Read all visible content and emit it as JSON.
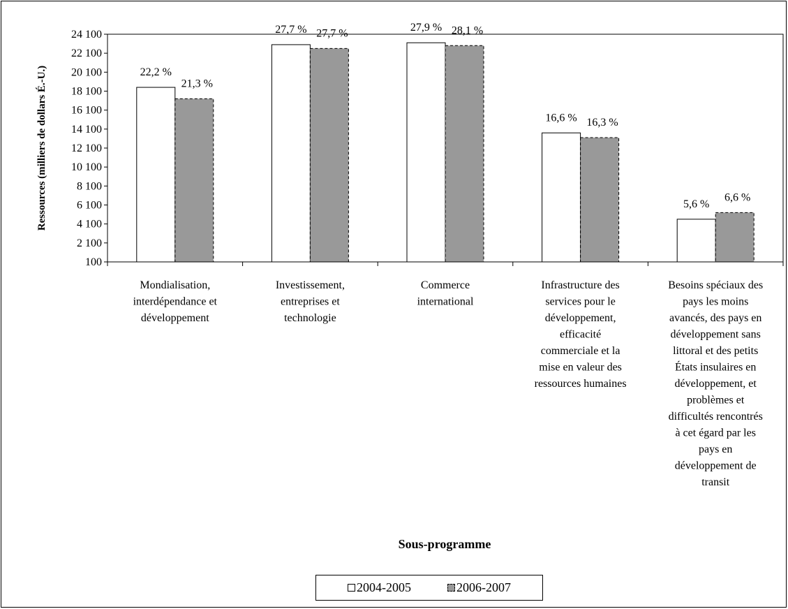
{
  "chart_data": {
    "type": "bar",
    "title": "",
    "xlabel": "Sous-programme",
    "ylabel": "Ressources (milliers de dollars É.-U.)",
    "ylim": [
      100,
      24100
    ],
    "yticks": [
      "100",
      "2 100",
      "4 100",
      "6 100",
      "8 100",
      "10 100",
      "12 100",
      "14 100",
      "16 100",
      "18 100",
      "20 100",
      "22 100",
      "24 100"
    ],
    "grid": false,
    "legend_position": "bottom",
    "categories": [
      "Mondialisation, interdépendance et développement",
      "Investissement, entreprises et technologie",
      "Commerce international",
      "Infrastructure des services pour le développement, efficacité commerciale et la mise en valeur des ressources humaines",
      "Besoins spéciaux des pays les moins avancés, des pays en développement sans littoral et des petits États insulaires en développement, et problèmes et difficultés rencontrés à cet égard par les pays en développement de transit"
    ],
    "category_lines": [
      [
        "Mondialisation,",
        "interdépendance et",
        "développement"
      ],
      [
        "Investissement,",
        "entreprises et",
        "technologie"
      ],
      [
        "Commerce",
        "international"
      ],
      [
        "Infrastructure des",
        "services pour le",
        "développement,",
        "efficacité",
        "commerciale et la",
        "mise en valeur des",
        "ressources humaines"
      ],
      [
        "Besoins spéciaux des",
        "pays les moins",
        "avancés, des pays en",
        "développement sans",
        "littoral et des petits",
        "États insulaires en",
        "développement, et",
        "problèmes et",
        "difficultés rencontrés",
        "à cet égard par les",
        "pays en",
        "développement de",
        "transit"
      ]
    ],
    "series": [
      {
        "name": "2004-2005",
        "color": "#ffffff",
        "values": [
          18500,
          23000,
          23200,
          13700,
          4600
        ],
        "labels": [
          "22,2 %",
          "27,7 %",
          "27,9 %",
          "16,6 %",
          "5,6 %"
        ]
      },
      {
        "name": "2006-2007",
        "color": "#999999",
        "values": [
          17300,
          22600,
          22900,
          13200,
          5300
        ],
        "labels": [
          "21,3 %",
          "27,7 %",
          "28,1 %",
          "16,3 %",
          "6,6 %"
        ]
      }
    ]
  }
}
